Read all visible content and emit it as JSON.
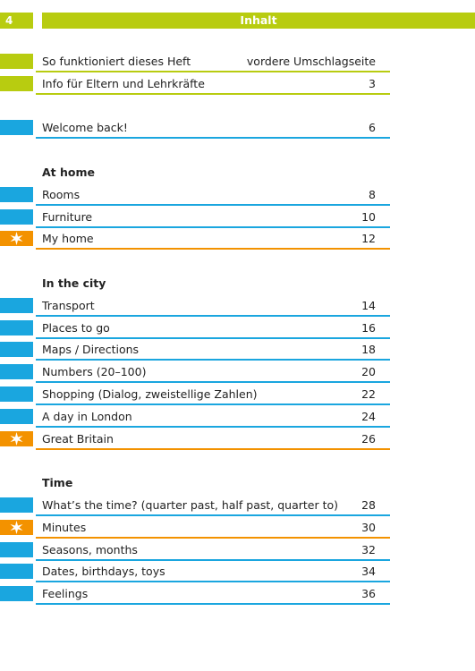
{
  "header": {
    "page_number": "4",
    "title": "Inhalt"
  },
  "sections": [
    {
      "color": "#b8cc10",
      "items": [
        {
          "title": "So funktioniert dieses Heft",
          "page": "vordere Umschlagseite"
        },
        {
          "title": "Info für Eltern und Lehrkräfte",
          "page": 3
        }
      ]
    },
    {
      "color": "#1aa6df",
      "items": [
        {
          "title": "Welcome back!",
          "page": 6
        }
      ]
    },
    {
      "heading": "At home",
      "color": "#1aa6df",
      "items": [
        {
          "title": "Rooms",
          "page": 8
        },
        {
          "title": "Furniture",
          "page": 10
        },
        {
          "title": "My home",
          "page": 12,
          "star": true
        }
      ]
    },
    {
      "heading": "In the city",
      "color": "#1aa6df",
      "items": [
        {
          "title": "Transport",
          "page": 14
        },
        {
          "title": "Places to go",
          "page": 16
        },
        {
          "title": "Maps / Directions",
          "page": 18
        },
        {
          "title": "Numbers (20–100)",
          "page": 20
        },
        {
          "title": "Shopping (Dialog, zweistellige Zahlen)",
          "page": 22
        },
        {
          "title": "A day in London",
          "page": 24
        },
        {
          "title": "Great Britain",
          "page": 26,
          "star": true
        }
      ]
    },
    {
      "heading": "Time",
      "color": "#1aa6df",
      "items": [
        {
          "title": "What’s the time? (quarter past, half past, quarter to)",
          "page": 28
        },
        {
          "title": "Minutes",
          "page": 30,
          "star": true
        },
        {
          "title": "Seasons, months",
          "page": 32
        },
        {
          "title": "Dates, birthdays, toys",
          "page": 34
        },
        {
          "title": "Feelings",
          "page": 36
        }
      ]
    }
  ],
  "star_color": "#f39200"
}
